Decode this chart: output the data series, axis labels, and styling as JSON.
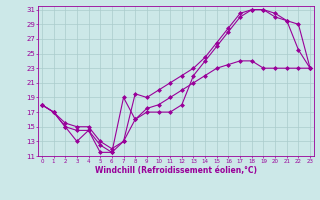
{
  "xlabel": "Windchill (Refroidissement éolien,°C)",
  "bg_color": "#cce8e8",
  "grid_color": "#aacccc",
  "line_color": "#990099",
  "xmin": 0,
  "xmax": 23,
  "ymin": 11,
  "ymax": 31,
  "series1": [
    [
      0,
      18
    ],
    [
      1,
      17
    ],
    [
      2,
      15
    ],
    [
      3,
      13
    ],
    [
      4,
      14.5
    ],
    [
      5,
      11.5
    ],
    [
      6,
      11.5
    ],
    [
      7,
      19
    ],
    [
      8,
      16
    ],
    [
      9,
      17
    ],
    [
      10,
      17
    ],
    [
      11,
      17
    ],
    [
      12,
      18
    ],
    [
      13,
      22
    ],
    [
      14,
      24
    ],
    [
      15,
      26
    ],
    [
      16,
      28
    ],
    [
      17,
      30
    ],
    [
      18,
      31
    ],
    [
      19,
      31
    ],
    [
      20,
      30
    ],
    [
      21,
      29.5
    ],
    [
      22,
      25.5
    ],
    [
      23,
      23
    ]
  ],
  "series2": [
    [
      0,
      18
    ],
    [
      1,
      17
    ],
    [
      2,
      15
    ],
    [
      3,
      14.5
    ],
    [
      4,
      14.5
    ],
    [
      5,
      12.5
    ],
    [
      6,
      11.5
    ],
    [
      7,
      13
    ],
    [
      8,
      19.5
    ],
    [
      9,
      19
    ],
    [
      10,
      20
    ],
    [
      11,
      21
    ],
    [
      12,
      22
    ],
    [
      13,
      23
    ],
    [
      14,
      24.5
    ],
    [
      15,
      26.5
    ],
    [
      16,
      28.5
    ],
    [
      17,
      30.5
    ],
    [
      18,
      31
    ],
    [
      19,
      31
    ],
    [
      20,
      30.5
    ],
    [
      21,
      29.5
    ],
    [
      22,
      29
    ],
    [
      23,
      23
    ]
  ],
  "series3": [
    [
      0,
      18
    ],
    [
      1,
      17
    ],
    [
      2,
      15.5
    ],
    [
      3,
      15
    ],
    [
      4,
      15
    ],
    [
      5,
      13
    ],
    [
      6,
      12
    ],
    [
      7,
      13
    ],
    [
      8,
      16
    ],
    [
      9,
      17.5
    ],
    [
      10,
      18
    ],
    [
      11,
      19
    ],
    [
      12,
      20
    ],
    [
      13,
      21
    ],
    [
      14,
      22
    ],
    [
      15,
      23
    ],
    [
      16,
      23.5
    ],
    [
      17,
      24
    ],
    [
      18,
      24
    ],
    [
      19,
      23
    ],
    [
      20,
      23
    ],
    [
      21,
      23
    ],
    [
      22,
      23
    ],
    [
      23,
      23
    ]
  ]
}
